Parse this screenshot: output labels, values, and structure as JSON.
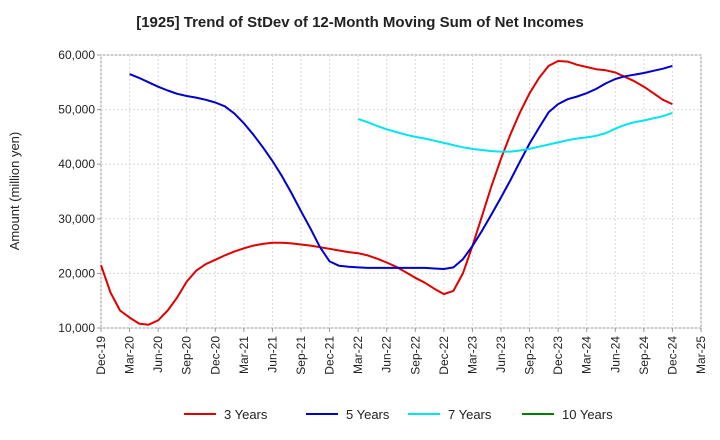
{
  "chart_data": {
    "type": "line",
    "title": "[1925]  Trend of StDev of 12-Month Moving Sum of Net Incomes",
    "xlabel": "",
    "ylabel": "Amount (million yen)",
    "ylim": [
      10000,
      60000
    ],
    "y_ticks": [
      "10,000",
      "20,000",
      "30,000",
      "40,000",
      "50,000",
      "60,000"
    ],
    "y_tick_values": [
      10000,
      20000,
      30000,
      40000,
      50000,
      60000
    ],
    "x_ticks": [
      "Dec-19",
      "Mar-20",
      "Jun-20",
      "Sep-20",
      "Dec-20",
      "Mar-21",
      "Jun-21",
      "Sep-21",
      "Dec-21",
      "Mar-22",
      "Jun-22",
      "Sep-22",
      "Dec-22",
      "Mar-23",
      "Jun-23",
      "Sep-23",
      "Dec-23",
      "Mar-24",
      "Jun-24",
      "Sep-24",
      "Dec-24",
      "Mar-25"
    ],
    "grid": true,
    "legend_position": "bottom",
    "series": [
      {
        "name": "3 Years",
        "color": "#e00000",
        "x": [
          "Dec-19",
          "Jan-20",
          "Feb-20",
          "Mar-20",
          "Apr-20",
          "May-20",
          "Jun-20",
          "Jul-20",
          "Aug-20",
          "Sep-20",
          "Oct-20",
          "Nov-20",
          "Dec-20",
          "Jan-21",
          "Feb-21",
          "Mar-21",
          "Apr-21",
          "May-21",
          "Jun-21",
          "Jul-21",
          "Aug-21",
          "Sep-21",
          "Oct-21",
          "Nov-21",
          "Dec-21",
          "Jan-22",
          "Feb-22",
          "Mar-22",
          "Apr-22",
          "May-22",
          "Jun-22",
          "Jul-22",
          "Aug-22",
          "Sep-22",
          "Oct-22",
          "Nov-22",
          "Dec-22",
          "Jan-23",
          "Feb-23",
          "Mar-23",
          "Apr-23",
          "May-23",
          "Jun-23",
          "Jul-23",
          "Aug-23",
          "Sep-23",
          "Oct-23",
          "Nov-23",
          "Dec-23",
          "Jan-24",
          "Feb-24",
          "Mar-24",
          "Apr-24",
          "May-24",
          "Jun-24",
          "Jul-24",
          "Aug-24",
          "Sep-24",
          "Oct-24",
          "Nov-24",
          "Dec-24"
        ],
        "values": [
          21500,
          16500,
          13200,
          11900,
          10800,
          10600,
          11400,
          13200,
          15600,
          18500,
          20500,
          21700,
          22500,
          23300,
          24000,
          24600,
          25100,
          25400,
          25600,
          25600,
          25500,
          25300,
          25100,
          24800,
          24500,
          24200,
          23900,
          23700,
          23300,
          22700,
          22000,
          21200,
          20200,
          19200,
          18300,
          17200,
          16200,
          16800,
          20000,
          25000,
          30500,
          36000,
          41000,
          45500,
          49500,
          53000,
          55800,
          58000,
          58900,
          58800,
          58200,
          57800,
          57400,
          57200,
          56800,
          56000,
          55200,
          54200,
          53000,
          51800,
          51000
        ]
      },
      {
        "name": "5 Years",
        "color": "#0000cc",
        "x": [
          "Mar-20",
          "Apr-20",
          "May-20",
          "Jun-20",
          "Jul-20",
          "Aug-20",
          "Sep-20",
          "Oct-20",
          "Nov-20",
          "Dec-20",
          "Jan-21",
          "Feb-21",
          "Mar-21",
          "Apr-21",
          "May-21",
          "Jun-21",
          "Jul-21",
          "Aug-21",
          "Sep-21",
          "Oct-21",
          "Nov-21",
          "Dec-21",
          "Jan-22",
          "Feb-22",
          "Mar-22",
          "Apr-22",
          "May-22",
          "Jun-22",
          "Jul-22",
          "Aug-22",
          "Sep-22",
          "Oct-22",
          "Nov-22",
          "Dec-22",
          "Jan-23",
          "Feb-23",
          "Mar-23",
          "Apr-23",
          "May-23",
          "Jun-23",
          "Jul-23",
          "Aug-23",
          "Sep-23",
          "Oct-23",
          "Nov-23",
          "Dec-23",
          "Jan-24",
          "Feb-24",
          "Mar-24",
          "Apr-24",
          "May-24",
          "Jun-24",
          "Jul-24",
          "Aug-24",
          "Sep-24",
          "Oct-24",
          "Nov-24",
          "Dec-24"
        ],
        "values": [
          56500,
          55800,
          55000,
          54200,
          53500,
          52900,
          52500,
          52200,
          51800,
          51300,
          50600,
          49300,
          47500,
          45400,
          43100,
          40600,
          37800,
          34700,
          31400,
          28200,
          24800,
          22200,
          21400,
          21200,
          21100,
          21000,
          21000,
          21000,
          21000,
          21000,
          21000,
          21000,
          20900,
          20800,
          21100,
          22600,
          25000,
          27800,
          30800,
          33900,
          37100,
          40500,
          43800,
          46700,
          49500,
          51000,
          51900,
          52400,
          53000,
          53800,
          54800,
          55600,
          56100,
          56400,
          56700,
          57100,
          57500,
          58000
        ]
      },
      {
        "name": "7 Years",
        "color": "#00e5ee",
        "x": [
          "Mar-22",
          "Apr-22",
          "May-22",
          "Jun-22",
          "Jul-22",
          "Aug-22",
          "Sep-22",
          "Oct-22",
          "Nov-22",
          "Dec-22",
          "Jan-23",
          "Feb-23",
          "Mar-23",
          "Apr-23",
          "May-23",
          "Jun-23",
          "Jul-23",
          "Aug-23",
          "Sep-23",
          "Oct-23",
          "Nov-23",
          "Dec-23",
          "Jan-24",
          "Feb-24",
          "Mar-24",
          "Apr-24",
          "May-24",
          "Jun-24",
          "Jul-24",
          "Aug-24",
          "Sep-24",
          "Oct-24",
          "Nov-24",
          "Dec-24"
        ],
        "values": [
          48300,
          47700,
          47000,
          46400,
          45900,
          45400,
          45000,
          44700,
          44300,
          43900,
          43500,
          43100,
          42800,
          42600,
          42400,
          42300,
          42300,
          42500,
          42800,
          43200,
          43600,
          44000,
          44400,
          44700,
          44900,
          45200,
          45700,
          46500,
          47200,
          47700,
          48000,
          48400,
          48800,
          49400
        ]
      },
      {
        "name": "10 Years",
        "color": "#008000",
        "x": [],
        "values": []
      }
    ]
  }
}
